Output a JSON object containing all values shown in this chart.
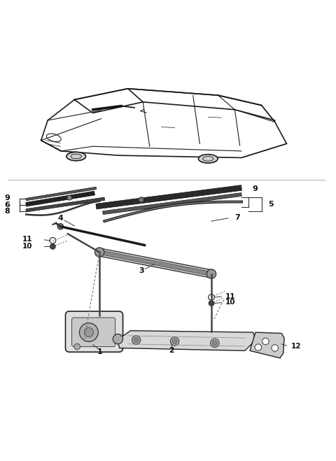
{
  "title": "",
  "bg_color": "#ffffff",
  "fig_width": 4.8,
  "fig_height": 6.59,
  "dpi": 100,
  "color_line": "#1a1a1a",
  "color_gray": "#555555",
  "label_fs": 8,
  "lw_thin": 0.8,
  "lw_med": 1.2,
  "lw_thick": 2.0
}
